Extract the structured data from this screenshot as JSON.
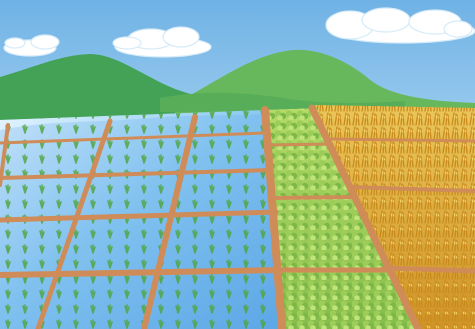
{
  "scene": {
    "kind": "illustration",
    "subject": "rice-paddy-fields-seasons",
    "colors": {
      "sky": "#8ec3ea",
      "sky_light": "#d9eefb",
      "cloud": "#ffffff",
      "mountain_left": "#3f9a52",
      "mountain_right": "#64b85a",
      "water": "#6fb3eb",
      "water_light": "#d8efff",
      "dike": "#cc8f59",
      "seedling": "#63b544",
      "young_rice": "#8cc152",
      "young_rice_light": "#b6dc6c",
      "ripe_rice": "#d39b27",
      "ripe_rice_light": "#f0c95a"
    },
    "sections": [
      {
        "name": "flooded-paddies-with-seedlings",
        "stage": "planting"
      },
      {
        "name": "growing-rice-paddies",
        "stage": "growing"
      },
      {
        "name": "ripe-golden-rice-paddies",
        "stage": "harvest"
      }
    ]
  }
}
